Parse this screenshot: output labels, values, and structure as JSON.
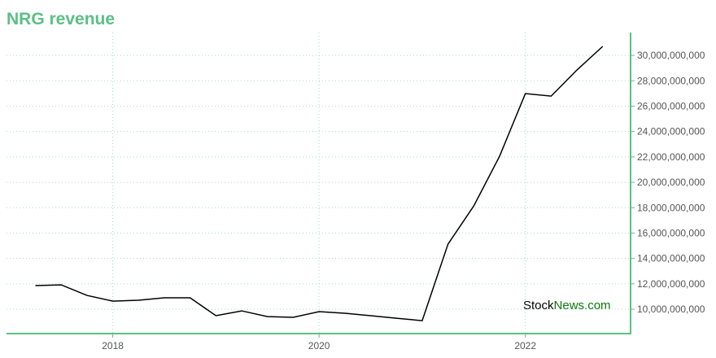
{
  "chart_data": {
    "type": "line",
    "title": "NRG revenue",
    "watermark": [
      "Stock",
      "News.com"
    ],
    "x": [
      2017.25,
      2017.5,
      2017.75,
      2018,
      2018.25,
      2018.5,
      2018.75,
      2019,
      2019.25,
      2019.5,
      2019.75,
      2020,
      2020.25,
      2020.5,
      2020.75,
      2021,
      2021.25,
      2021.5,
      2021.75,
      2022,
      2022.25,
      2022.5,
      2022.75
    ],
    "series": [
      {
        "color": "#000000",
        "values": [
          11860000000,
          11920000000,
          11090000000,
          10640000000,
          10710000000,
          10900000000,
          10900000000,
          9490000000,
          9870000000,
          9420000000,
          9360000000,
          9810000000,
          9680000000,
          9490000000,
          9290000000,
          9100000000,
          15130000000,
          18140000000,
          22050000000,
          26990000000,
          26790000000,
          28850000000,
          30710000000
        ]
      }
    ],
    "xlim": [
      2016.97,
      2023.02
    ],
    "xticks": [
      2018,
      2020,
      2022
    ],
    "ylim": [
      8080000000,
      31800000000
    ],
    "yticks": [
      {
        "value": 10000000000,
        "label": "10,000,000,000"
      },
      {
        "value": 12000000000,
        "label": "12,000,000,000"
      },
      {
        "value": 14000000000,
        "label": "14,000,000,000"
      },
      {
        "value": 16000000000,
        "label": "16,000,000,000"
      },
      {
        "value": 18000000000,
        "label": "18,000,000,000"
      },
      {
        "value": 20000000000,
        "label": "20,000,000,000"
      },
      {
        "value": 22000000000,
        "label": "22,000,000,000"
      },
      {
        "value": 24000000000,
        "label": "24,000,000,000"
      },
      {
        "value": 26000000000,
        "label": "26,000,000,000"
      },
      {
        "value": 28000000000,
        "label": "28,000,000,000"
      },
      {
        "value": 30000000000,
        "label": "30,000,000,000"
      }
    ],
    "grid": true,
    "axis_color": "#5cbf85",
    "grid_color": "#a9d9d0"
  }
}
